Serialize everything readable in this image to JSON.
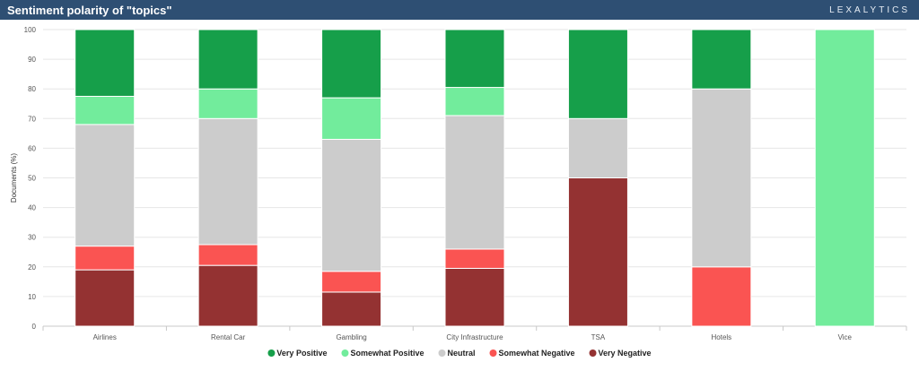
{
  "header": {
    "title": "Sentiment polarity of \"topics\"",
    "brand": "LEXALYTICS"
  },
  "chart_data": {
    "type": "bar",
    "stacked": true,
    "title": "Sentiment polarity of \"topics\"",
    "xlabel": "",
    "ylabel": "Documents (%)",
    "ylim": [
      0,
      100
    ],
    "yticks": [
      0,
      10,
      20,
      30,
      40,
      50,
      60,
      70,
      80,
      90,
      100
    ],
    "grid": true,
    "legend_position": "bottom",
    "categories": [
      "Airlines",
      "Rental Car",
      "Gambling",
      "City Infrastructure",
      "TSA",
      "Hotels",
      "Vice"
    ],
    "series": [
      {
        "name": "Very Negative",
        "color": "#943232",
        "values": [
          19,
          20.5,
          11.5,
          19.5,
          50,
          0,
          0
        ]
      },
      {
        "name": "Somewhat Negative",
        "color": "#fa5452",
        "values": [
          8,
          7,
          7,
          6.5,
          0,
          20,
          0
        ]
      },
      {
        "name": "Neutral",
        "color": "#cccccc",
        "values": [
          41,
          42.5,
          44.5,
          45,
          20,
          60,
          0
        ]
      },
      {
        "name": "Somewhat Positive",
        "color": "#72ec9c",
        "values": [
          9.5,
          10,
          14,
          9.5,
          0,
          0,
          100
        ]
      },
      {
        "name": "Very Positive",
        "color": "#169f4a",
        "values": [
          22.5,
          20,
          23,
          19.5,
          30,
          20,
          0
        ]
      }
    ],
    "legend_order": [
      "Very Positive",
      "Somewhat Positive",
      "Neutral",
      "Somewhat Negative",
      "Very Negative"
    ]
  }
}
